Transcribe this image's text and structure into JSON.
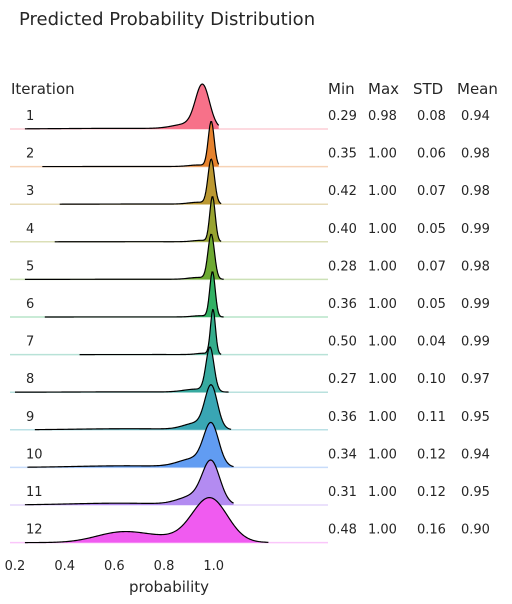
{
  "chart_data": {
    "type": "ridgeline",
    "title": "Predicted Probability Distribution",
    "row_header": "Iteration",
    "xlabel": "probability",
    "xlim": [
      0.18,
      1.46
    ],
    "xticks": [
      "0.2",
      "0.4",
      "0.6",
      "0.8",
      "1.0"
    ],
    "stat_headers": [
      "Min",
      "Max",
      "STD",
      "Mean"
    ],
    "rows": [
      {
        "label": "1",
        "color": "#f77189",
        "min": "0.29",
        "max": "0.98",
        "std": "0.08",
        "mean": "0.94",
        "x_start": 0.24,
        "x_end": 1.02,
        "components": [
          {
            "mu": 0.955,
            "sd": 0.028,
            "w": 0.72
          },
          {
            "mu": 0.9,
            "sd": 0.06,
            "w": 0.18
          },
          {
            "mu": 0.62,
            "sd": 0.25,
            "w": 0.1
          }
        ]
      },
      {
        "label": "2",
        "color": "#e5822e",
        "min": "0.35",
        "max": "1.00",
        "std": "0.06",
        "mean": "0.98",
        "x_start": 0.31,
        "x_end": 1.02,
        "components": [
          {
            "mu": 0.99,
            "sd": 0.012,
            "w": 0.86
          },
          {
            "mu": 0.94,
            "sd": 0.04,
            "w": 0.1
          },
          {
            "mu": 0.7,
            "sd": 0.2,
            "w": 0.04
          }
        ]
      },
      {
        "label": "3",
        "color": "#bb9831",
        "min": "0.42",
        "max": "1.00",
        "std": "0.07",
        "mean": "0.98",
        "x_start": 0.38,
        "x_end": 1.03,
        "components": [
          {
            "mu": 0.99,
            "sd": 0.013,
            "w": 0.84
          },
          {
            "mu": 0.94,
            "sd": 0.04,
            "w": 0.11
          },
          {
            "mu": 0.72,
            "sd": 0.18,
            "w": 0.05
          }
        ]
      },
      {
        "label": "4",
        "color": "#97a331",
        "min": "0.40",
        "max": "1.00",
        "std": "0.05",
        "mean": "0.99",
        "x_start": 0.36,
        "x_end": 1.03,
        "components": [
          {
            "mu": 0.995,
            "sd": 0.011,
            "w": 0.88
          },
          {
            "mu": 0.95,
            "sd": 0.035,
            "w": 0.09
          },
          {
            "mu": 0.72,
            "sd": 0.18,
            "w": 0.03
          }
        ]
      },
      {
        "label": "5",
        "color": "#6daa32",
        "min": "0.28",
        "max": "1.00",
        "std": "0.07",
        "mean": "0.98",
        "x_start": 0.24,
        "x_end": 1.04,
        "components": [
          {
            "mu": 0.99,
            "sd": 0.013,
            "w": 0.84
          },
          {
            "mu": 0.94,
            "sd": 0.04,
            "w": 0.11
          },
          {
            "mu": 0.7,
            "sd": 0.2,
            "w": 0.05
          }
        ]
      },
      {
        "label": "6",
        "color": "#32b164",
        "min": "0.36",
        "max": "1.00",
        "std": "0.05",
        "mean": "0.99",
        "x_start": 0.32,
        "x_end": 1.04,
        "components": [
          {
            "mu": 0.995,
            "sd": 0.011,
            "w": 0.89
          },
          {
            "mu": 0.95,
            "sd": 0.035,
            "w": 0.08
          },
          {
            "mu": 0.7,
            "sd": 0.2,
            "w": 0.03
          }
        ]
      },
      {
        "label": "7",
        "color": "#35ad8c",
        "min": "0.50",
        "max": "1.00",
        "std": "0.04",
        "mean": "0.99",
        "x_start": 0.46,
        "x_end": 1.03,
        "components": [
          {
            "mu": 0.997,
            "sd": 0.01,
            "w": 0.9
          },
          {
            "mu": 0.96,
            "sd": 0.03,
            "w": 0.08
          },
          {
            "mu": 0.78,
            "sd": 0.15,
            "w": 0.02
          }
        ]
      },
      {
        "label": "8",
        "color": "#37aaa0",
        "min": "0.27",
        "max": "1.00",
        "std": "0.10",
        "mean": "0.97",
        "x_start": 0.2,
        "x_end": 1.06,
        "components": [
          {
            "mu": 0.985,
            "sd": 0.016,
            "w": 0.76
          },
          {
            "mu": 0.93,
            "sd": 0.05,
            "w": 0.16
          },
          {
            "mu": 0.65,
            "sd": 0.22,
            "w": 0.08
          }
        ]
      },
      {
        "label": "9",
        "color": "#39a6b4",
        "min": "0.36",
        "max": "1.00",
        "std": "0.11",
        "mean": "0.95",
        "x_start": 0.28,
        "x_end": 1.07,
        "components": [
          {
            "mu": 0.99,
            "sd": 0.025,
            "w": 0.66
          },
          {
            "mu": 0.93,
            "sd": 0.05,
            "w": 0.2
          },
          {
            "mu": 0.66,
            "sd": 0.2,
            "w": 0.14
          }
        ]
      },
      {
        "label": "10",
        "color": "#619cf2",
        "min": "0.34",
        "max": "1.00",
        "std": "0.12",
        "mean": "0.94",
        "x_start": 0.25,
        "x_end": 1.08,
        "components": [
          {
            "mu": 0.99,
            "sd": 0.03,
            "w": 0.6
          },
          {
            "mu": 0.92,
            "sd": 0.06,
            "w": 0.24
          },
          {
            "mu": 0.65,
            "sd": 0.2,
            "w": 0.16
          }
        ]
      },
      {
        "label": "11",
        "color": "#b38bf1",
        "min": "0.31",
        "max": "1.00",
        "std": "0.12",
        "mean": "0.95",
        "x_start": 0.24,
        "x_end": 1.08,
        "components": [
          {
            "mu": 0.99,
            "sd": 0.035,
            "w": 0.62
          },
          {
            "mu": 0.92,
            "sd": 0.06,
            "w": 0.22
          },
          {
            "mu": 0.62,
            "sd": 0.2,
            "w": 0.16
          }
        ]
      },
      {
        "label": "12",
        "color": "#f05bf0",
        "min": "0.48",
        "max": "1.00",
        "std": "0.16",
        "mean": "0.90",
        "x_start": 0.24,
        "x_end": 1.22,
        "components": [
          {
            "mu": 0.985,
            "sd": 0.07,
            "w": 0.65
          },
          {
            "mu": 0.62,
            "sd": 0.1,
            "w": 0.18
          },
          {
            "mu": 0.8,
            "sd": 0.15,
            "w": 0.17
          }
        ]
      }
    ]
  }
}
